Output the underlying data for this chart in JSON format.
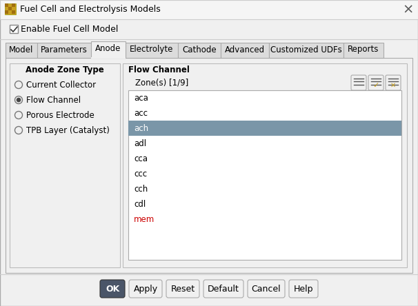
{
  "title": "Fuel Cell and Electrolysis Models",
  "bg_color": "#f0f0f0",
  "checkbox_label": "Enable Fuel Cell Model",
  "tabs": [
    "Model",
    "Parameters",
    "Anode",
    "Electrolyte",
    "Cathode",
    "Advanced",
    "Customized UDFs",
    "Reports"
  ],
  "active_tab": "Anode",
  "left_panel_title": "Anode Zone Type",
  "radio_options": [
    "Current Collector",
    "Flow Channel",
    "Porous Electrode",
    "TPB Layer (Catalyst)"
  ],
  "selected_radio": 1,
  "right_panel_title": "Flow Channel",
  "zone_label": "Zone(s) [1/9]",
  "list_items": [
    "aca",
    "acc",
    "ach",
    "adl",
    "cca",
    "ccc",
    "cch",
    "cdl",
    "mem"
  ],
  "selected_item": "ach",
  "selected_item_color": "#7a96a8",
  "list_text_color": "#000000",
  "mem_color": "#cc0000",
  "buttons": [
    "OK",
    "Apply",
    "Reset",
    "Default",
    "Cancel",
    "Help"
  ],
  "ok_bg": "#4a5568",
  "ok_fg": "#ffffff",
  "icon_color": "#c8a020",
  "tab_widths": [
    46,
    78,
    50,
    76,
    62,
    70,
    108,
    58
  ]
}
